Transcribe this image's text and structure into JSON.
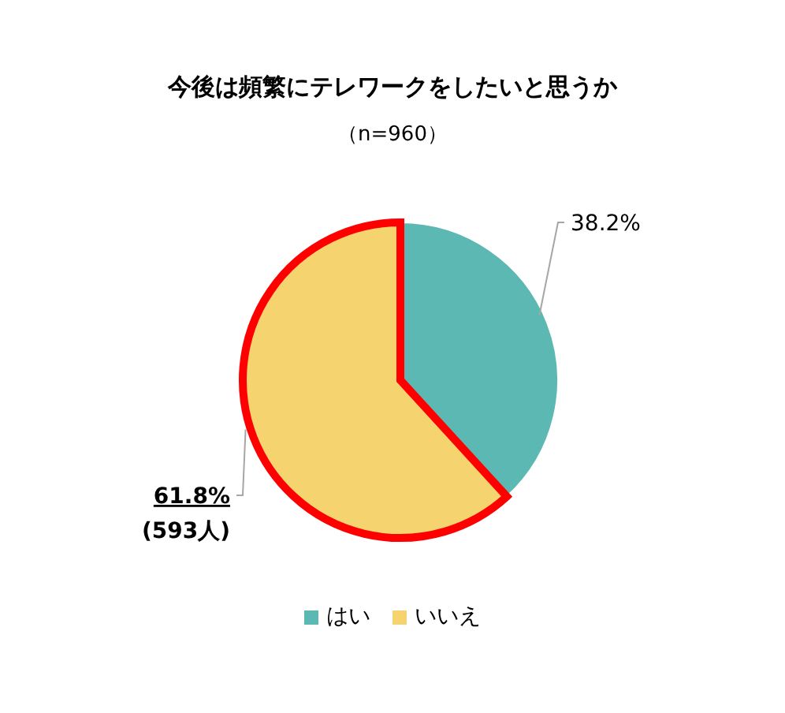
{
  "chart_data": {
    "type": "pie",
    "title": "今後は頻繁にテレワークをしたいと思うか",
    "subtitle": "（n=960）",
    "categories": [
      "はい",
      "いいえ"
    ],
    "values": [
      38.2,
      61.8
    ],
    "colors": [
      "#5cb8b2",
      "#f5d46f"
    ],
    "value_labels": [
      "38.2%",
      "61.8%\n(593人)"
    ],
    "legend": "bottom"
  }
}
